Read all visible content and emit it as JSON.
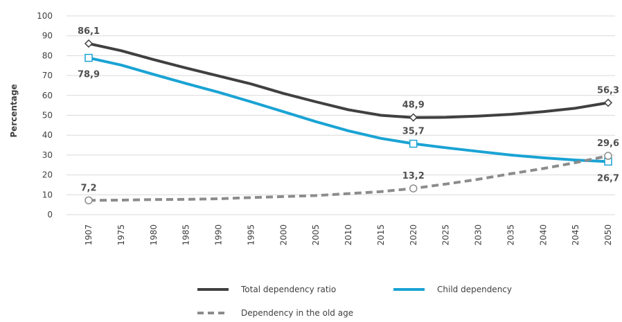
{
  "chart_data": {
    "type": "line",
    "title": "",
    "xlabel": "",
    "ylabel": "Percentage",
    "ylim": [
      0,
      100
    ],
    "yticks": [
      0,
      10,
      20,
      30,
      40,
      50,
      60,
      70,
      80,
      90,
      100
    ],
    "categories": [
      "1907",
      "1975",
      "1980",
      "1985",
      "1990",
      "1995",
      "2000",
      "2005",
      "2010",
      "2015",
      "2020",
      "2025",
      "2030",
      "2035",
      "2040",
      "2045",
      "2050"
    ],
    "grid": "horizontal",
    "legend_position": "bottom",
    "series": [
      {
        "name": "Total dependency ratio",
        "color": "#404040",
        "dash": false,
        "marker": "diamond",
        "values": [
          86.1,
          82.5,
          78,
          73.8,
          69.8,
          65.8,
          61,
          56.8,
          52.8,
          50,
          48.9,
          49,
          49.6,
          50.5,
          51.8,
          53.6,
          56.3
        ],
        "labels": [
          {
            "index": 0,
            "text": "86,1",
            "pos": "above"
          },
          {
            "index": 10,
            "text": "48,9",
            "pos": "above"
          },
          {
            "index": 16,
            "text": "56,3",
            "pos": "above"
          }
        ]
      },
      {
        "name": "Child dependency",
        "color": "#1aa3d4",
        "dash": false,
        "marker": "square",
        "values": [
          78.9,
          75.3,
          70.6,
          66,
          61.6,
          56.8,
          51.8,
          46.8,
          42.2,
          38.4,
          35.7,
          33.7,
          31.8,
          30,
          28.6,
          27.5,
          26.7
        ],
        "labels": [
          {
            "index": 0,
            "text": "78,9",
            "pos": "below"
          },
          {
            "index": 10,
            "text": "35,7",
            "pos": "above"
          },
          {
            "index": 16,
            "text": "26,7",
            "pos": "below"
          }
        ]
      },
      {
        "name": "Dependency in the old age",
        "color": "#8c8c8c",
        "dash": true,
        "marker": "circle",
        "values": [
          7.2,
          7.3,
          7.6,
          7.7,
          8.0,
          8.6,
          9.1,
          9.6,
          10.6,
          11.6,
          13.2,
          15.4,
          17.8,
          20.6,
          23.2,
          26.2,
          29.6
        ],
        "labels": [
          {
            "index": 0,
            "text": "7,2",
            "pos": "above"
          },
          {
            "index": 10,
            "text": "13,2",
            "pos": "above"
          },
          {
            "index": 16,
            "text": "29,6",
            "pos": "above"
          }
        ]
      }
    ]
  }
}
